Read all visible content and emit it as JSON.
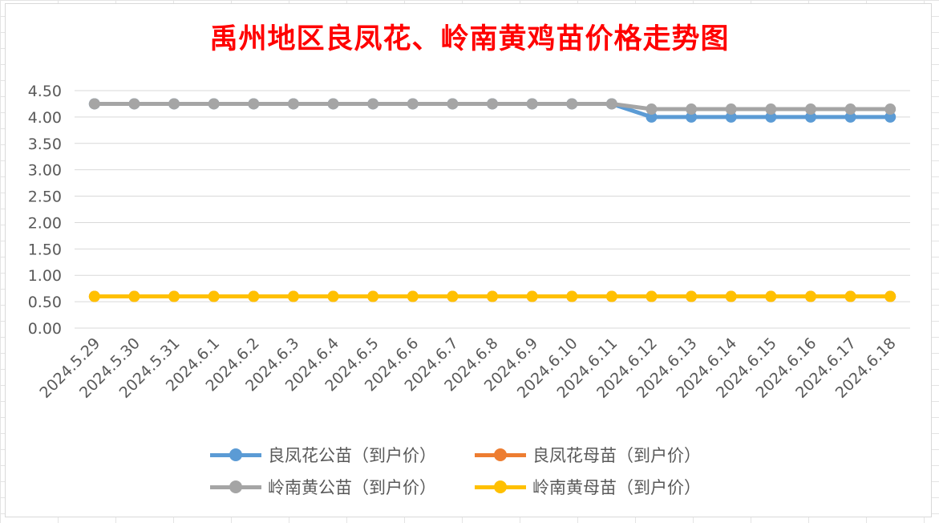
{
  "chart_data": {
    "type": "line",
    "title": "禹州地区良凤花、岭南黄鸡苗价格走势图",
    "xlabel": "",
    "ylabel": "",
    "ylim": [
      0,
      4.5
    ],
    "yticks": [
      "0.00",
      "0.50",
      "1.00",
      "1.50",
      "2.00",
      "2.50",
      "3.00",
      "3.50",
      "4.00",
      "4.50"
    ],
    "grid": true,
    "legend_position": "bottom",
    "categories": [
      "2024.5.29",
      "2024.5.30",
      "2024.5.31",
      "2024.6.1",
      "2024.6.2",
      "2024.6.3",
      "2024.6.4",
      "2024.6.5",
      "2024.6.6",
      "2024.6.7",
      "2024.6.8",
      "2024.6.9",
      "2024.6.10",
      "2024.6.11",
      "2024.6.12",
      "2024.6.13",
      "2024.6.14",
      "2024.6.15",
      "2024.6.16",
      "2024.6.17",
      "2024.6.18"
    ],
    "series": [
      {
        "name": "良凤花公苗（到户价）",
        "color": "#5b9bd5",
        "values": [
          4.25,
          4.25,
          4.25,
          4.25,
          4.25,
          4.25,
          4.25,
          4.25,
          4.25,
          4.25,
          4.25,
          4.25,
          4.25,
          4.25,
          4.0,
          4.0,
          4.0,
          4.0,
          4.0,
          4.0,
          4.0
        ]
      },
      {
        "name": "良凤花母苗（到户价）",
        "color": "#ed7d31",
        "values": [
          0.6,
          0.6,
          0.6,
          0.6,
          0.6,
          0.6,
          0.6,
          0.6,
          0.6,
          0.6,
          0.6,
          0.6,
          0.6,
          0.6,
          0.6,
          0.6,
          0.6,
          0.6,
          0.6,
          0.6,
          0.6
        ]
      },
      {
        "name": "岭南黄公苗（到户价）",
        "color": "#a5a5a5",
        "values": [
          4.25,
          4.25,
          4.25,
          4.25,
          4.25,
          4.25,
          4.25,
          4.25,
          4.25,
          4.25,
          4.25,
          4.25,
          4.25,
          4.25,
          4.15,
          4.15,
          4.15,
          4.15,
          4.15,
          4.15,
          4.15
        ]
      },
      {
        "name": "岭南黄母苗（到户价）",
        "color": "#ffc000",
        "values": [
          0.6,
          0.6,
          0.6,
          0.6,
          0.6,
          0.6,
          0.6,
          0.6,
          0.6,
          0.6,
          0.6,
          0.6,
          0.6,
          0.6,
          0.6,
          0.6,
          0.6,
          0.6,
          0.6,
          0.6,
          0.6
        ]
      }
    ]
  }
}
